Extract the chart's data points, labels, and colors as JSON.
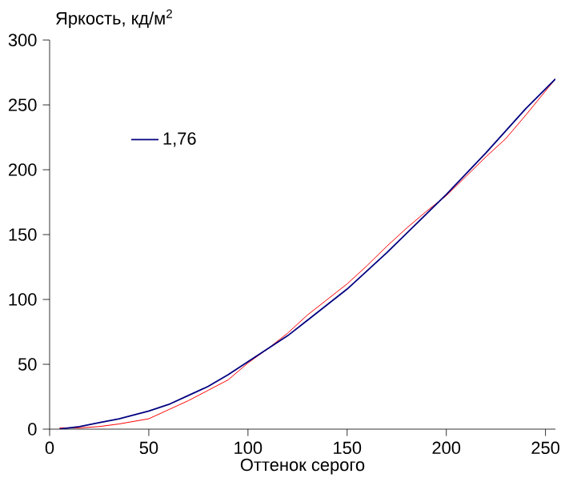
{
  "chart_data": {
    "type": "line",
    "xlabel": "Оттенок серого",
    "ylabel": "Яркость, кд/м$^{2}$",
    "xlim": [
      0,
      255
    ],
    "ylim": [
      0,
      300
    ],
    "xticks": [
      0,
      50,
      100,
      150,
      200,
      250
    ],
    "yticks": [
      0,
      50,
      100,
      150,
      200,
      250,
      300
    ],
    "grid": false,
    "legend": "top left",
    "marker": "none",
    "line_style": "solid",
    "series": [
      {
        "color": "#ff0000",
        "x": [
          5,
          15,
          25,
          35,
          50,
          60,
          70,
          80,
          90,
          100,
          110,
          120,
          130,
          140,
          150,
          160,
          170,
          180,
          190,
          200,
          210,
          220,
          230,
          240,
          255
        ],
        "values": [
          1,
          1,
          2,
          4,
          8,
          15,
          22,
          30,
          38,
          51,
          62,
          74,
          88,
          100,
          112,
          126,
          141,
          155,
          168,
          180,
          195,
          210,
          224,
          242,
          270
        ]
      },
      {
        "name": "1,76",
        "color": "#000080",
        "x": [
          5,
          15,
          25,
          35,
          50,
          60,
          70,
          80,
          90,
          100,
          110,
          120,
          130,
          140,
          150,
          160,
          170,
          180,
          190,
          200,
          210,
          220,
          230,
          240,
          255
        ],
        "values": [
          0,
          2,
          5,
          8,
          14,
          19,
          26,
          33,
          42,
          52,
          62,
          72,
          84,
          96,
          108,
          122,
          136,
          151,
          166,
          181,
          197,
          213,
          230,
          247,
          270
        ]
      }
    ]
  }
}
